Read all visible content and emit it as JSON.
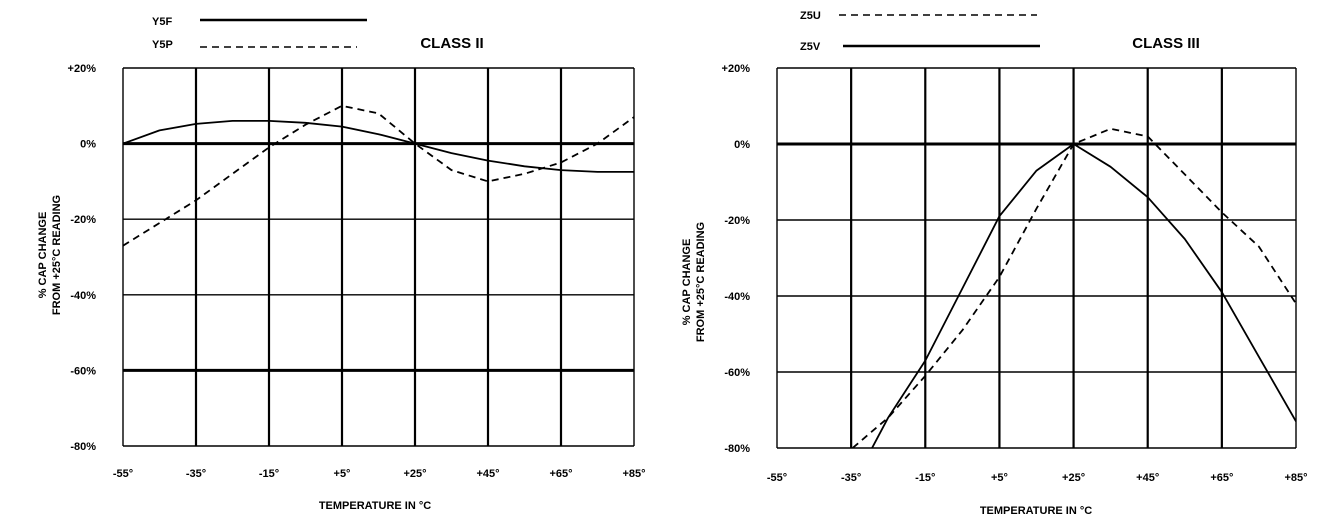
{
  "chart_data": [
    {
      "type": "line",
      "title": "CLASS II",
      "xlabel": "TEMPERATURE IN °C",
      "ylabel": [
        "% CAP CHANGE",
        "FROM +25°C READING"
      ],
      "x_tick_labels": [
        "-55°",
        "-35°",
        "-15°",
        "+5°",
        "+25°",
        "+45°",
        "+65°",
        "+85°"
      ],
      "y_tick_labels": [
        "+20%",
        "0%",
        "-20%",
        "-40%",
        "-60%",
        "-80%"
      ],
      "xlim": [
        -55,
        85
      ],
      "ylim": [
        -80,
        20
      ],
      "grid": true,
      "emphasized_gridlines_y": [
        0,
        -60
      ],
      "legend_position": "top-left, outside plot",
      "series": [
        {
          "name": "Y5F",
          "style": "solid",
          "x": [
            -55,
            -45,
            -35,
            -25,
            -15,
            -5,
            5,
            15,
            25,
            35,
            45,
            55,
            65,
            75,
            85
          ],
          "y": [
            0,
            3.5,
            5.2,
            6,
            6,
            5.5,
            4.5,
            2.5,
            0,
            -2.5,
            -4.5,
            -6,
            -7,
            -7.5,
            -7.5
          ]
        },
        {
          "name": "Y5P",
          "style": "dashed",
          "x": [
            -55,
            -45,
            -35,
            -25,
            -15,
            -5,
            5,
            15,
            25,
            35,
            45,
            55,
            65,
            75,
            85
          ],
          "y": [
            -27,
            -21,
            -15,
            -8,
            -1,
            5,
            10,
            8,
            0,
            -7,
            -10,
            -8,
            -5,
            0,
            7
          ]
        }
      ]
    },
    {
      "type": "line",
      "title": "CLASS III",
      "xlabel": "TEMPERATURE IN °C",
      "ylabel": [
        "% CAP CHANGE",
        "FROM +25°C READING"
      ],
      "x_tick_labels": [
        "-55°",
        "-35°",
        "-15°",
        "+5°",
        "+25°",
        "+45°",
        "+65°",
        "+85°"
      ],
      "y_tick_labels": [
        "+20%",
        "0%",
        "-20%",
        "-40%",
        "-60%",
        "-80%"
      ],
      "xlim": [
        -55,
        85
      ],
      "ylim": [
        -80,
        20
      ],
      "grid": true,
      "emphasized_gridlines_y": [
        0
      ],
      "legend_position": "top-left, outside plot",
      "series": [
        {
          "name": "Z5U",
          "style": "dashed",
          "x": [
            -37,
            -25,
            -15,
            -5,
            5,
            15,
            25,
            35,
            45,
            55,
            65,
            75,
            85
          ],
          "y": [
            -82,
            -72,
            -61,
            -49,
            -35,
            -17,
            0,
            4,
            2,
            -8,
            -18,
            -27,
            -42
          ]
        },
        {
          "name": "Z5V",
          "style": "solid",
          "x": [
            -31,
            -25,
            -15,
            -5,
            5,
            15,
            25,
            35,
            45,
            55,
            65,
            75,
            85
          ],
          "y": [
            -83,
            -72,
            -57,
            -38,
            -19,
            -7,
            0,
            -6,
            -14,
            -25,
            -39,
            -56,
            -73
          ]
        }
      ]
    }
  ]
}
